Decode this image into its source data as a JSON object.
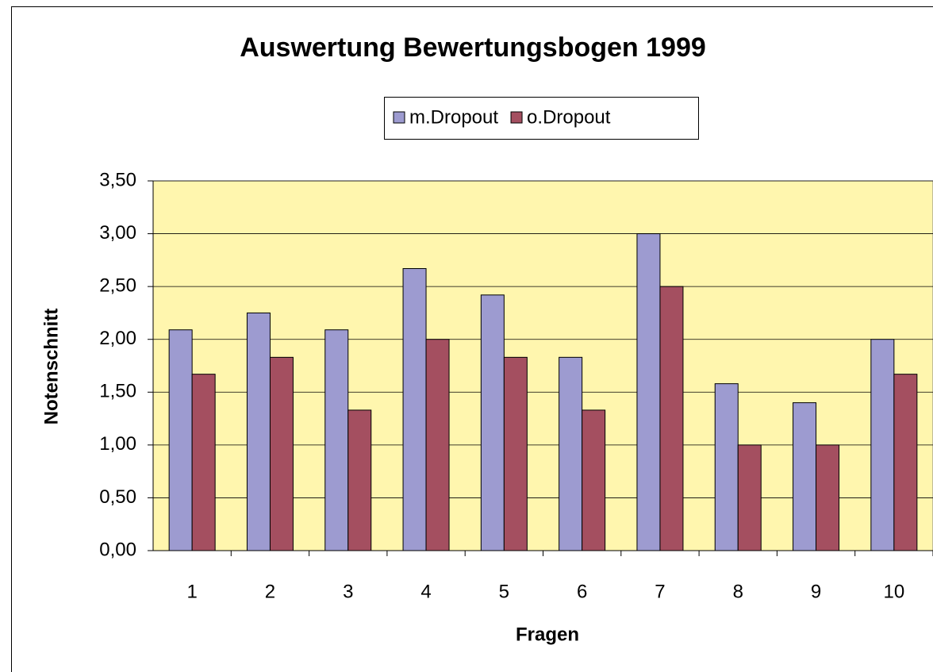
{
  "chart_data": {
    "type": "bar",
    "title": "Auswertung Bewertungsbogen 1999",
    "x_label": "Fragen",
    "y_label": "Notenschnitt",
    "categories": [
      "1",
      "2",
      "3",
      "4",
      "5",
      "6",
      "7",
      "8",
      "9",
      "10"
    ],
    "series": [
      {
        "name": "m.Dropout",
        "color": "#9d9bd0",
        "values": [
          2.09,
          2.25,
          2.09,
          2.67,
          2.42,
          1.83,
          3.0,
          1.58,
          1.4,
          2.0
        ]
      },
      {
        "name": "o.Dropout",
        "color": "#a44f60",
        "values": [
          1.67,
          1.83,
          1.33,
          2.0,
          1.83,
          1.33,
          2.5,
          1.0,
          1.0,
          1.67
        ]
      }
    ],
    "ylim": [
      0,
      3.5
    ],
    "yticks": [
      {
        "value": 0,
        "label": "0,00"
      },
      {
        "value": 0.5,
        "label": "0,50"
      },
      {
        "value": 1,
        "label": "1,00"
      },
      {
        "value": 1.5,
        "label": "1,50"
      },
      {
        "value": 2,
        "label": "2,00"
      },
      {
        "value": 2.5,
        "label": "2,50"
      },
      {
        "value": 3,
        "label": "3,00"
      },
      {
        "value": 3.5,
        "label": "3,50"
      }
    ],
    "grid": true,
    "legend": "top"
  }
}
